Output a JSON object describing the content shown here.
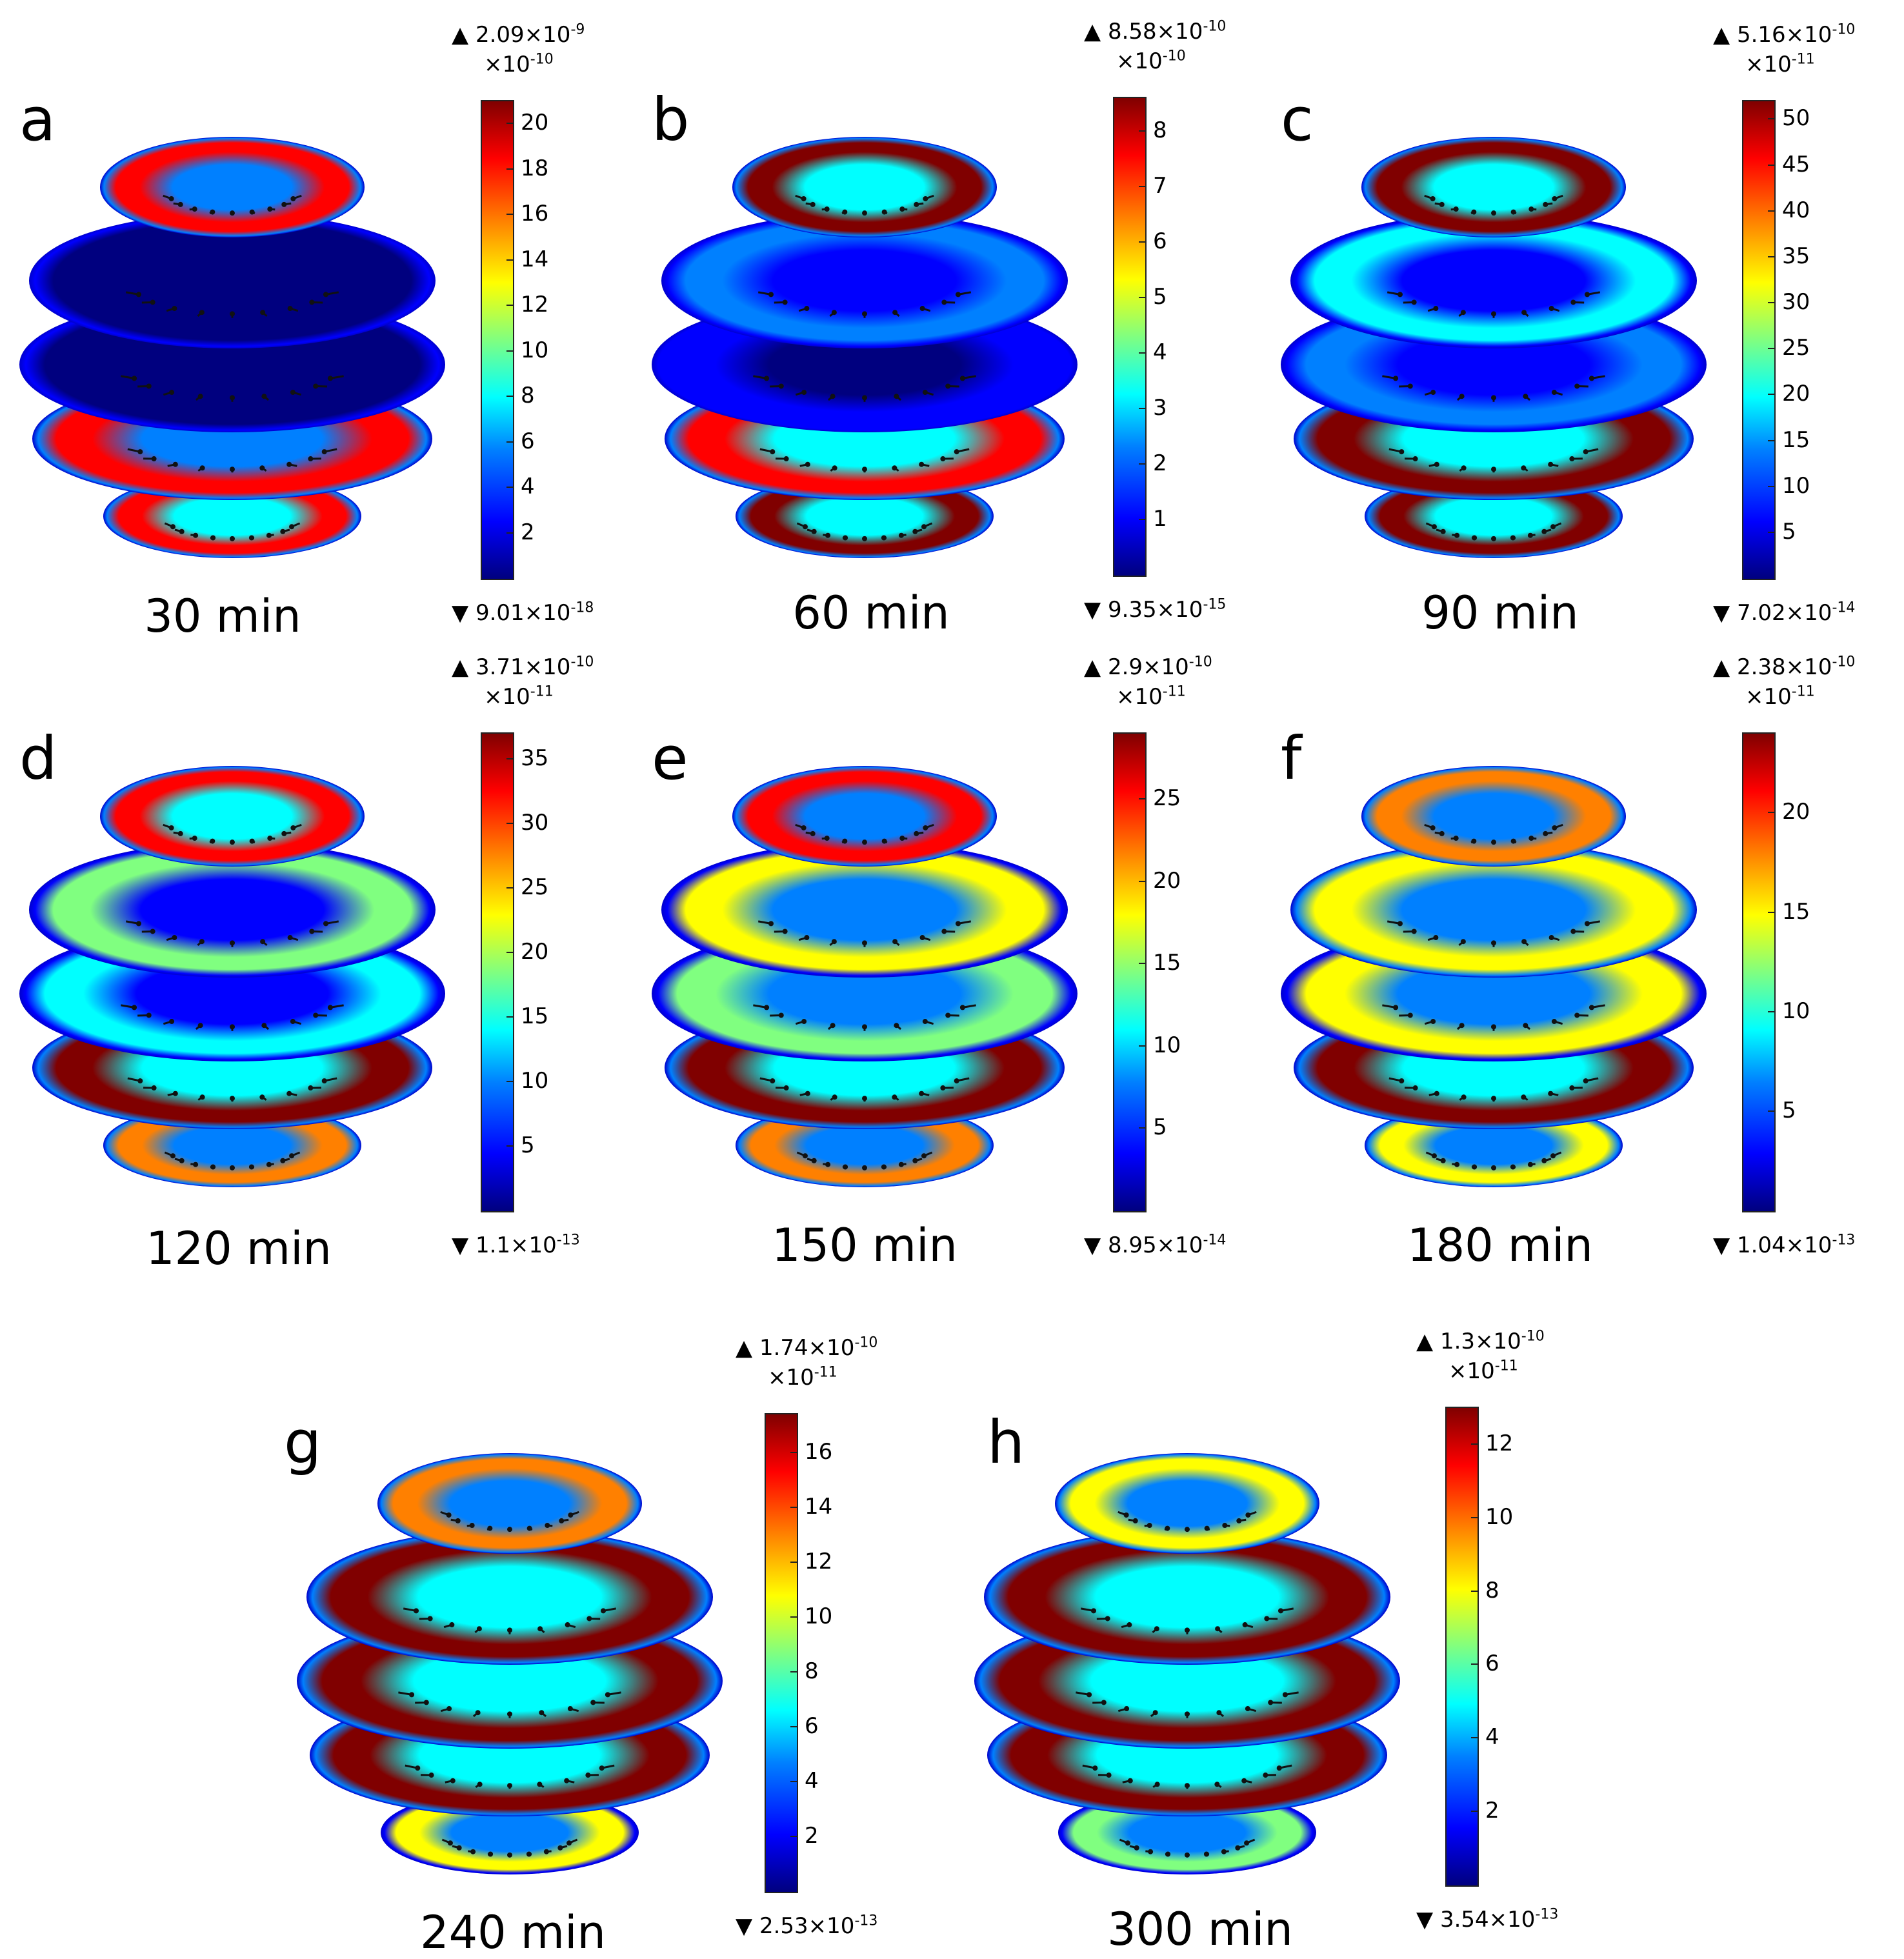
{
  "colormap": [
    "#00007f",
    "#0000ff",
    "#0080ff",
    "#00ffff",
    "#80ff80",
    "#ffff00",
    "#ff8000",
    "#ff0000",
    "#800000"
  ],
  "panels": [
    {
      "letter": "a",
      "time": "30 min",
      "max_label": "2.09×10",
      "max_exp": "-9",
      "scale_label": "×10",
      "scale_exp": "-10",
      "min_label": "9.01×10",
      "min_exp": "-18",
      "ticks": [
        "2",
        "4",
        "6",
        "8",
        "10",
        "12",
        "14",
        "16",
        "18",
        "20"
      ],
      "tick_range": [
        0,
        21
      ],
      "rings": [
        0.85,
        0.05,
        0.05,
        0.85,
        0.9
      ]
    },
    {
      "letter": "b",
      "time": "60 min",
      "max_label": "8.58×10",
      "max_exp": "-10",
      "scale_label": "×10",
      "scale_exp": "-10",
      "min_label": "9.35×10",
      "min_exp": "-15",
      "ticks": [
        "1",
        "2",
        "3",
        "4",
        "5",
        "6",
        "7",
        "8"
      ],
      "tick_range": [
        0,
        8.6
      ],
      "rings": [
        0.95,
        0.2,
        0.15,
        0.9,
        0.95
      ]
    },
    {
      "letter": "c",
      "time": "90 min",
      "max_label": "5.16×10",
      "max_exp": "-10",
      "scale_label": "×10",
      "scale_exp": "-11",
      "min_label": "7.02×10",
      "min_exp": "-14",
      "ticks": [
        "5",
        "10",
        "15",
        "20",
        "25",
        "30",
        "35",
        "40",
        "45",
        "50"
      ],
      "tick_range": [
        0,
        52
      ],
      "rings": [
        0.95,
        0.4,
        0.3,
        0.95,
        0.95
      ]
    },
    {
      "letter": "d",
      "time": "120 min",
      "max_label": "3.71×10",
      "max_exp": "-10",
      "scale_label": "×10",
      "scale_exp": "-11",
      "min_label": "1.1×10",
      "min_exp": "-13",
      "ticks": [
        "5",
        "10",
        "15",
        "20",
        "25",
        "30",
        "35"
      ],
      "tick_range": [
        0,
        37
      ],
      "rings": [
        0.9,
        0.5,
        0.4,
        0.95,
        0.75
      ]
    },
    {
      "letter": "e",
      "time": "150 min",
      "max_label": "2.9×10",
      "max_exp": "-10",
      "scale_label": "×10",
      "scale_exp": "-11",
      "min_label": "8.95×10",
      "min_exp": "-14",
      "ticks": [
        "5",
        "10",
        "15",
        "20",
        "25"
      ],
      "tick_range": [
        0,
        29
      ],
      "rings": [
        0.85,
        0.6,
        0.55,
        0.95,
        0.7
      ]
    },
    {
      "letter": "f",
      "time": "180 min",
      "max_label": "2.38×10",
      "max_exp": "-10",
      "scale_label": "×10",
      "scale_exp": "-11",
      "min_label": "1.04×10",
      "min_exp": "-13",
      "ticks": [
        "5",
        "10",
        "15",
        "20"
      ],
      "tick_range": [
        0,
        24
      ],
      "rings": [
        0.8,
        0.65,
        0.6,
        0.95,
        0.65
      ]
    },
    {
      "letter": "g",
      "time": "240 min",
      "max_label": "1.74×10",
      "max_exp": "-10",
      "scale_label": "×10",
      "scale_exp": "-11",
      "min_label": "2.53×10",
      "min_exp": "-13",
      "ticks": [
        "2",
        "4",
        "6",
        "8",
        "10",
        "12",
        "14",
        "16"
      ],
      "tick_range": [
        0,
        17.4
      ],
      "rings": [
        0.7,
        0.95,
        0.95,
        0.95,
        0.6
      ]
    },
    {
      "letter": "h",
      "time": "300 min",
      "max_label": "1.3×10",
      "max_exp": "-10",
      "scale_label": "×10",
      "scale_exp": "-11",
      "min_label": "3.54×10",
      "min_exp": "-13",
      "ticks": [
        "2",
        "4",
        "6",
        "8",
        "10",
        "12"
      ],
      "tick_range": [
        0,
        13
      ],
      "rings": [
        0.65,
        0.95,
        0.95,
        0.95,
        0.55
      ]
    }
  ]
}
